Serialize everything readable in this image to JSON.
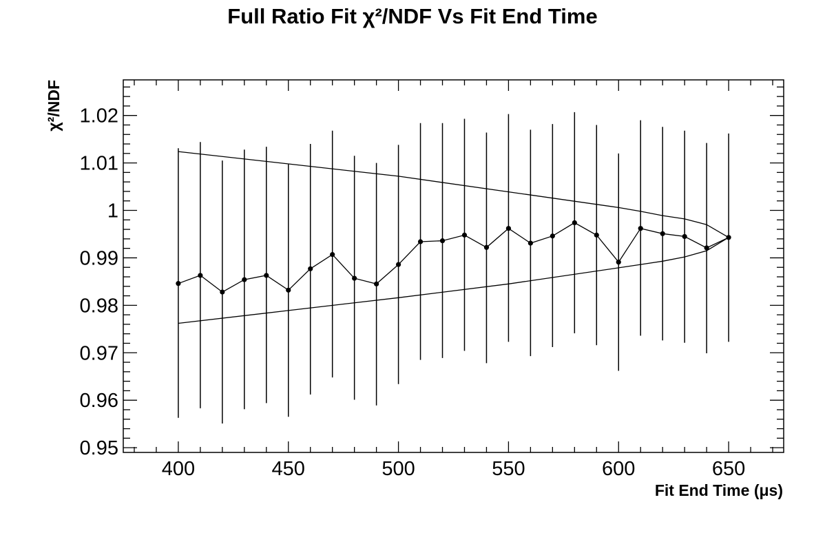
{
  "chart_data": {
    "type": "scatter",
    "title": "Full Ratio Fit  χ²/NDF Vs Fit End Time",
    "xlabel": "Fit End Time (μs)",
    "ylabel": "χ²/NDF",
    "xlim": [
      375,
      675
    ],
    "ylim": [
      0.949,
      1.0275
    ],
    "x_ticks": [
      400,
      450,
      500,
      550,
      600,
      650
    ],
    "y_ticks": [
      0.95,
      0.96,
      0.97,
      0.98,
      0.99,
      1.0,
      1.01,
      1.02
    ],
    "x_tick_labels": [
      "400",
      "450",
      "500",
      "550",
      "600",
      "650"
    ],
    "y_tick_labels": [
      "0.95",
      "0.96",
      "0.97",
      "0.98",
      "0.99",
      "1",
      "1.01",
      "1.02"
    ],
    "grid": false,
    "series": [
      {
        "x": [
          400,
          410,
          420,
          430,
          440,
          450,
          460,
          470,
          480,
          490,
          500,
          510,
          520,
          530,
          540,
          550,
          560,
          570,
          580,
          590,
          600,
          610,
          620,
          630,
          640,
          650
        ],
        "y": [
          0.9846,
          0.9863,
          0.9828,
          0.9854,
          0.9863,
          0.9832,
          0.9877,
          0.9907,
          0.9857,
          0.9845,
          0.9886,
          0.9934,
          0.9936,
          0.9948,
          0.9922,
          0.9962,
          0.9931,
          0.9946,
          0.9974,
          0.9948,
          0.9891,
          0.9962,
          0.9951,
          0.9945,
          0.9921,
          0.9943
        ],
        "err_low": [
          0.9563,
          0.9583,
          0.9551,
          0.9581,
          0.9594,
          0.9565,
          0.9612,
          0.9648,
          0.9601,
          0.9589,
          0.9634,
          0.9685,
          0.9689,
          0.9704,
          0.9678,
          0.9723,
          0.9693,
          0.9712,
          0.9741,
          0.9716,
          0.9662,
          0.9736,
          0.9726,
          0.9721,
          0.9699,
          0.9723
        ],
        "err_high": [
          1.0131,
          1.0144,
          1.0105,
          1.0128,
          1.0134,
          1.0097,
          1.014,
          1.0168,
          1.0115,
          1.01,
          1.0138,
          1.0184,
          1.0184,
          1.0193,
          1.0164,
          1.0203,
          1.017,
          1.0182,
          1.0207,
          1.018,
          1.012,
          1.019,
          1.0176,
          1.0168,
          1.0142,
          1.0162
        ]
      }
    ],
    "envelope_upper": {
      "x": [
        400,
        450,
        500,
        550,
        600,
        610,
        620,
        630,
        640,
        650
      ],
      "y": [
        1.0124,
        1.0098,
        1.0072,
        1.0039,
        1.0006,
        0.9998,
        0.9989,
        0.9982,
        0.997,
        0.9943
      ]
    },
    "envelope_lower": {
      "x": [
        400,
        450,
        500,
        550,
        600,
        610,
        620,
        630,
        640,
        650
      ],
      "y": [
        0.9762,
        0.9789,
        0.9816,
        0.9845,
        0.9879,
        0.9886,
        0.9893,
        0.9902,
        0.9915,
        0.9943
      ]
    }
  }
}
